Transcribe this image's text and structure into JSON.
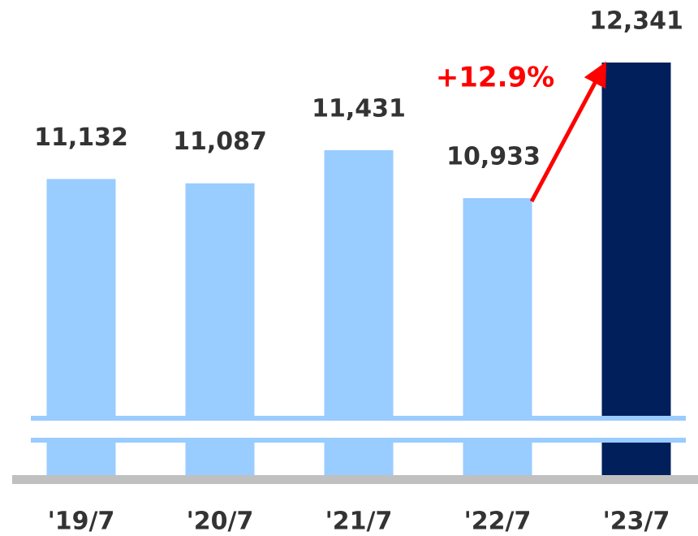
{
  "chart_data": {
    "type": "bar",
    "categories": [
      "'19/7",
      "'20/7",
      "'21/7",
      "'22/7",
      "'23/7"
    ],
    "values": [
      11132,
      11087,
      11431,
      10933,
      12341
    ],
    "value_labels": [
      "11,132",
      "11,087",
      "11,431",
      "10,933",
      "12,341"
    ],
    "colors": [
      "#99ccff",
      "#99ccff",
      "#99ccff",
      "#99ccff",
      "#001f5b"
    ],
    "annotation": "+12.9%",
    "annotation_color": "#ff0000"
  }
}
